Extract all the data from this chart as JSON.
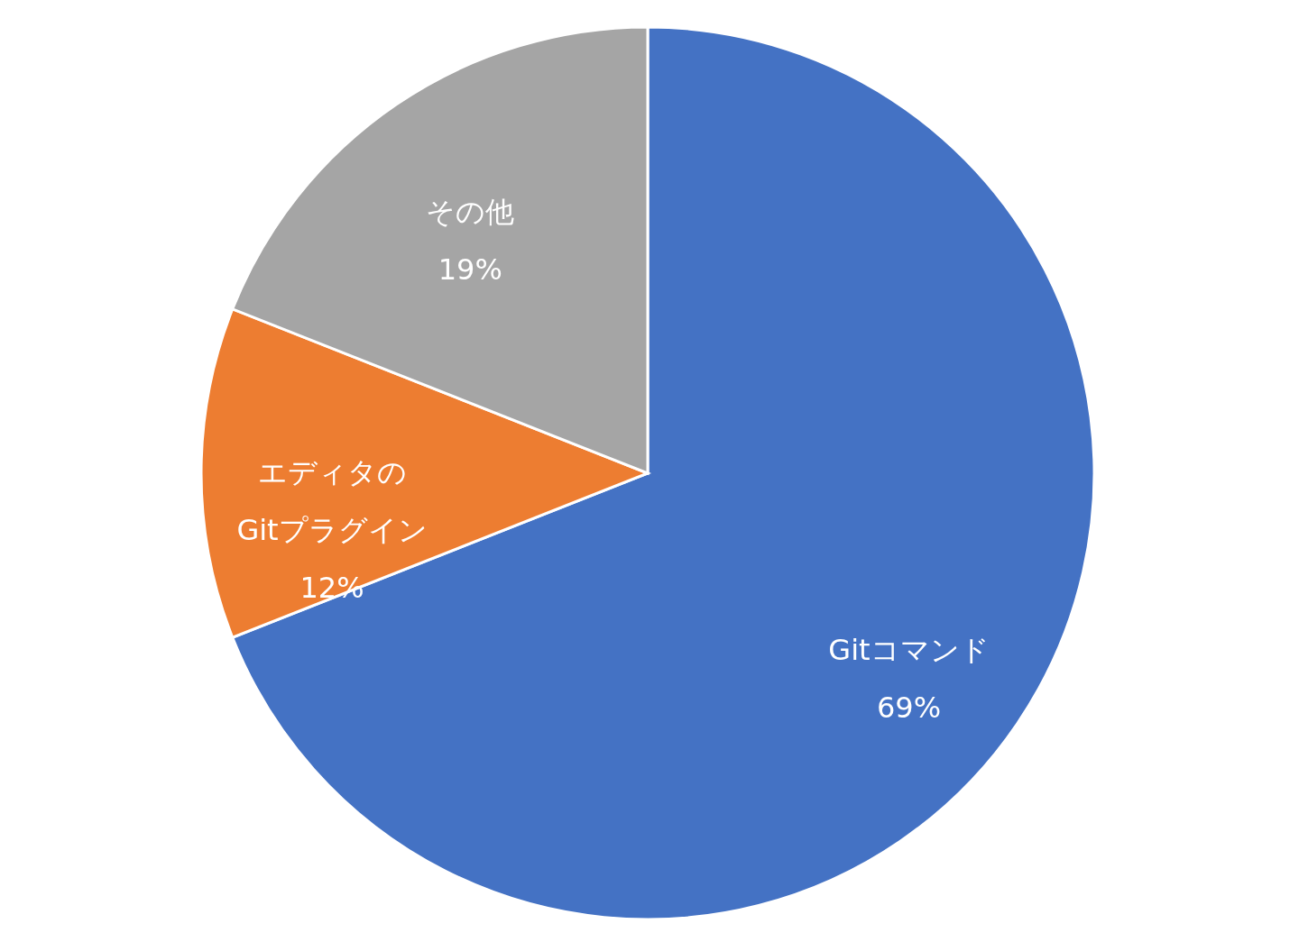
{
  "chart_data": {
    "type": "pie",
    "categories": [
      "Gitコマンド",
      "エディタの\nGitプラグイン",
      "その他"
    ],
    "values": [
      69,
      12,
      19
    ],
    "colors": [
      "#4472c4",
      "#ed7d31",
      "#a5a5a5"
    ],
    "value_labels": [
      "69%",
      "12%",
      "19%"
    ]
  }
}
